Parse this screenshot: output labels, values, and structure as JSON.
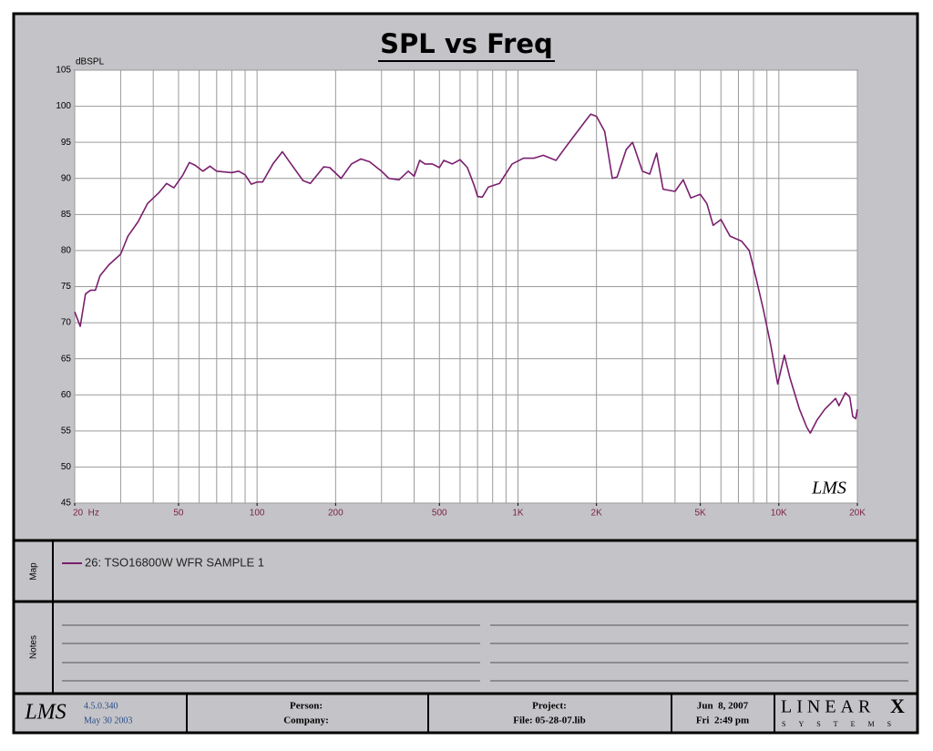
{
  "chart_data": {
    "type": "line",
    "title": "SPL vs Freq",
    "y_label": "dBSPL",
    "watermark": "LMS",
    "xscale": "log",
    "grid": true,
    "xlim": [
      20,
      20000
    ],
    "ylim": [
      45,
      105
    ],
    "xticks": [
      {
        "value": 20,
        "label": "20  Hz"
      },
      50,
      100,
      200,
      500,
      {
        "value": 1000,
        "label": "1K"
      },
      {
        "value": 2000,
        "label": "2K"
      },
      {
        "value": 5000,
        "label": "5K"
      },
      {
        "value": 10000,
        "label": "10K"
      },
      {
        "value": 20000,
        "label": "20K"
      }
    ],
    "xgrid": [
      20,
      30,
      40,
      50,
      60,
      70,
      80,
      90,
      100,
      200,
      300,
      400,
      500,
      600,
      700,
      800,
      900,
      1000,
      2000,
      3000,
      4000,
      5000,
      6000,
      7000,
      8000,
      9000,
      10000,
      20000
    ],
    "yticks": [
      45,
      50,
      55,
      60,
      65,
      70,
      75,
      80,
      85,
      90,
      95,
      100,
      105
    ],
    "x": [
      20,
      21,
      22,
      23,
      24,
      25,
      27,
      30,
      32,
      35,
      38,
      42,
      45,
      48,
      52,
      55,
      58,
      62,
      66,
      70,
      80,
      85,
      90,
      95,
      100,
      105,
      115,
      125,
      135,
      150,
      160,
      180,
      190,
      210,
      230,
      250,
      270,
      300,
      320,
      350,
      380,
      400,
      420,
      440,
      470,
      500,
      520,
      560,
      600,
      640,
      680,
      700,
      730,
      770,
      850,
      950,
      1050,
      1150,
      1250,
      1400,
      1500,
      1650,
      1800,
      1900,
      2000,
      2150,
      2300,
      2400,
      2600,
      2750,
      3000,
      3200,
      3400,
      3600,
      4000,
      4300,
      4600,
      5000,
      5300,
      5600,
      6000,
      6500,
      7200,
      7700,
      8200,
      8700,
      9300,
      9900,
      10500,
      11000,
      12000,
      12800,
      13200,
      14000,
      15000,
      16500,
      17000,
      18000,
      18700,
      19200,
      19700,
      20000
    ],
    "series": [
      {
        "name": "26: TSO16800W WFR SAMPLE 1",
        "color": "#7a1f6e",
        "values": [
          71.5,
          69.5,
          74,
          74.5,
          74.5,
          76.5,
          78,
          79.5,
          82,
          84,
          86.5,
          88,
          89.3,
          88.7,
          90.5,
          92.2,
          91.8,
          91,
          91.7,
          91,
          90.8,
          91,
          90.5,
          89.2,
          89.5,
          89.5,
          92,
          93.7,
          92,
          89.7,
          89.3,
          91.6,
          91.5,
          90,
          92,
          92.7,
          92.3,
          91,
          90,
          89.8,
          91,
          90.3,
          92.5,
          92,
          92,
          91.5,
          92.5,
          92,
          92.6,
          91.5,
          89,
          87.5,
          87.4,
          88.8,
          89.3,
          92,
          92.8,
          92.8,
          93.2,
          92.5,
          94,
          96,
          97.8,
          98.9,
          98.6,
          96.5,
          90,
          90.2,
          94,
          95,
          91,
          90.6,
          93.5,
          88.5,
          88.2,
          89.8,
          87.3,
          87.8,
          86.5,
          83.5,
          84.3,
          82,
          81.3,
          80,
          76,
          72,
          67,
          61.5,
          65.5,
          62.5,
          58,
          55.5,
          54.7,
          56.5,
          58,
          59.5,
          58.5,
          60.3,
          59.7,
          57,
          56.7,
          58
        ]
      }
    ]
  },
  "panels": {
    "map": "Map",
    "notes": "Notes"
  },
  "footer": {
    "logo": "LMS",
    "version": "4.5.0.340",
    "build_date": "May 30 2003",
    "person": "Person:",
    "company": "Company:",
    "project": "Project:",
    "file": "File: 05-28-07.lib",
    "print_date": "Jun  8, 2007",
    "print_time": "Fri  2:49 pm",
    "brand": "LINEAR",
    "brand_mark": "X",
    "brand_sub": "SYSTEMS"
  }
}
